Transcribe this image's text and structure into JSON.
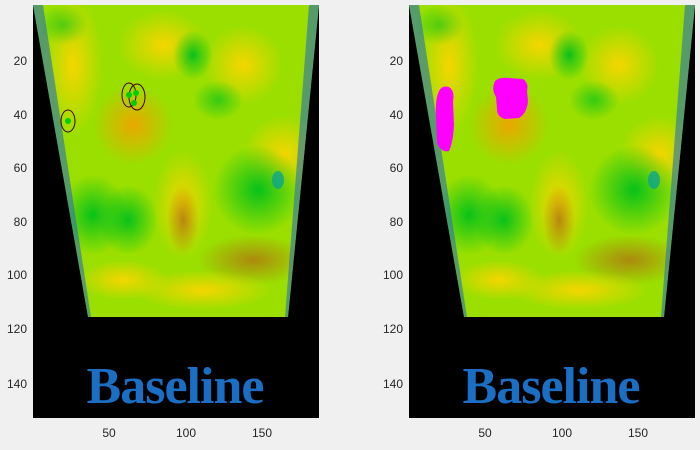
{
  "figure": {
    "background": "#f0f0f0",
    "panels": [
      {
        "id": "left",
        "caption": "Baseline",
        "overlay": "circles",
        "y_ticks": [
          "20",
          "40",
          "60",
          "80",
          "100",
          "120",
          "140"
        ],
        "x_ticks": [
          "50",
          "100",
          "150"
        ]
      },
      {
        "id": "right",
        "caption": "Baseline",
        "overlay": "mask",
        "y_ticks": [
          "20",
          "40",
          "60",
          "80",
          "100",
          "120",
          "140"
        ],
        "x_ticks": [
          "50",
          "100",
          "150"
        ]
      }
    ],
    "colors": {
      "caption": "#1a6fc4",
      "mask": "#ff00ff",
      "marker": "#00cc00",
      "circle": "#400000"
    }
  }
}
